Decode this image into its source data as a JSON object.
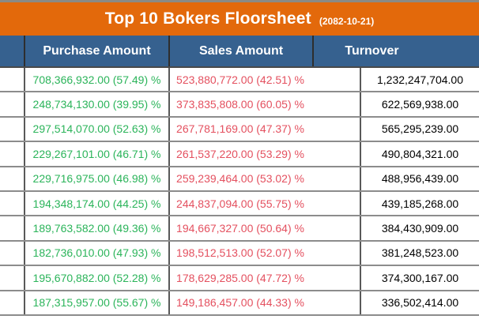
{
  "chart_data": {
    "type": "table",
    "title": "Top 10 Bokers Floorsheet",
    "date": "(2082-10-21)",
    "columns": [
      "",
      "Purchase Amount",
      "Sales Amount",
      "Turnover"
    ],
    "rows": [
      {
        "purchase": "708,366,932.00 (57.49) %",
        "sales": "523,880,772.00 (42.51) %",
        "turnover": "1,232,247,704.00"
      },
      {
        "purchase": "248,734,130.00 (39.95) %",
        "sales": "373,835,808.00 (60.05) %",
        "turnover": "622,569,938.00"
      },
      {
        "purchase": "297,514,070.00 (52.63) %",
        "sales": "267,781,169.00 (47.37) %",
        "turnover": "565,295,239.00"
      },
      {
        "purchase": "229,267,101.00 (46.71) %",
        "sales": "261,537,220.00 (53.29) %",
        "turnover": "490,804,321.00"
      },
      {
        "purchase": "229,716,975.00 (46.98) %",
        "sales": "259,239,464.00 (53.02) %",
        "turnover": "488,956,439.00"
      },
      {
        "purchase": "194,348,174.00 (44.25) %",
        "sales": "244,837,094.00 (55.75) %",
        "turnover": "439,185,268.00"
      },
      {
        "purchase": "189,763,582.00 (49.36) %",
        "sales": "194,667,327.00 (50.64) %",
        "turnover": "384,430,909.00"
      },
      {
        "purchase": "182,736,010.00 (47.93) %",
        "sales": "198,512,513.00 (52.07) %",
        "turnover": "381,248,523.00"
      },
      {
        "purchase": "195,670,882.00 (52.28) %",
        "sales": "178,629,285.00 (47.72) %",
        "turnover": "374,300,167.00"
      },
      {
        "purchase": "187,315,957.00 (55.67) %",
        "sales": "149,186,457.00 (44.33) %",
        "turnover": "336,502,414.00"
      }
    ],
    "layout_hints": {
      "purchase_values_color_meaning": "green = purchase side",
      "sales_values_color_meaning": "red = sales side",
      "grid": "on"
    }
  },
  "colors": {
    "title_bg": "#E3690B",
    "header_bg": "#36618F",
    "purchase_text": "#2BB45A",
    "sales_text": "#E4505F",
    "turnover_text": "#000000",
    "grid_line": "#8c8c8c"
  }
}
